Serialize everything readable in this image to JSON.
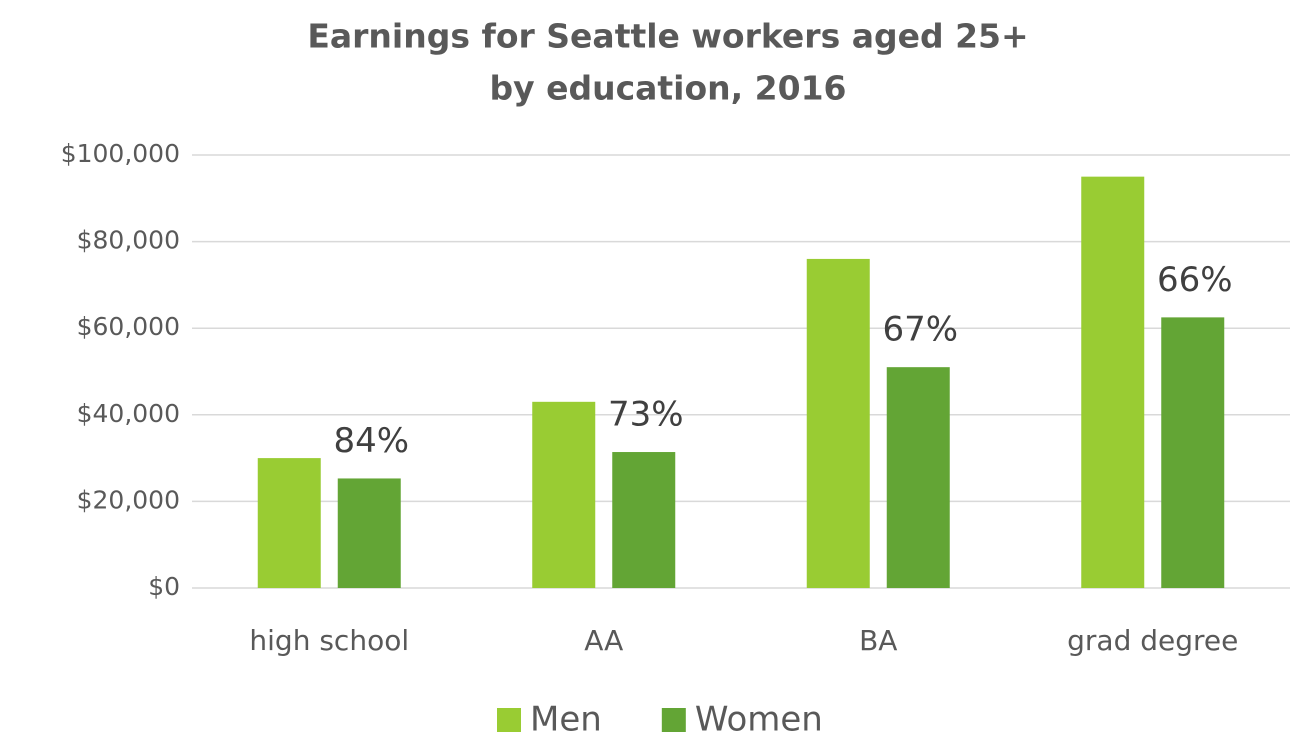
{
  "chart_data": {
    "type": "bar",
    "title": [
      "Earnings for Seattle workers aged 25+",
      "by education, 2016"
    ],
    "categories": [
      "high school",
      "AA",
      "BA",
      "grad degree"
    ],
    "series": [
      {
        "name": "Men",
        "color": "#99cc33",
        "values": [
          30000,
          43000,
          76000,
          95000
        ]
      },
      {
        "name": "Women",
        "color": "#63a535",
        "values": [
          25300,
          31400,
          51000,
          62500
        ]
      }
    ],
    "annotations": [
      "84%",
      "73%",
      "67%",
      "66%"
    ],
    "ylim": [
      0,
      100000
    ],
    "yticks": [
      {
        "value": 0,
        "label": "$0"
      },
      {
        "value": 20000,
        "label": "$20,000"
      },
      {
        "value": 40000,
        "label": "$40,000"
      },
      {
        "value": 60000,
        "label": "$60,000"
      },
      {
        "value": 80000,
        "label": "$80,000"
      },
      {
        "value": 100000,
        "label": "$100,000"
      }
    ],
    "grid": true,
    "legend": "bottom"
  }
}
